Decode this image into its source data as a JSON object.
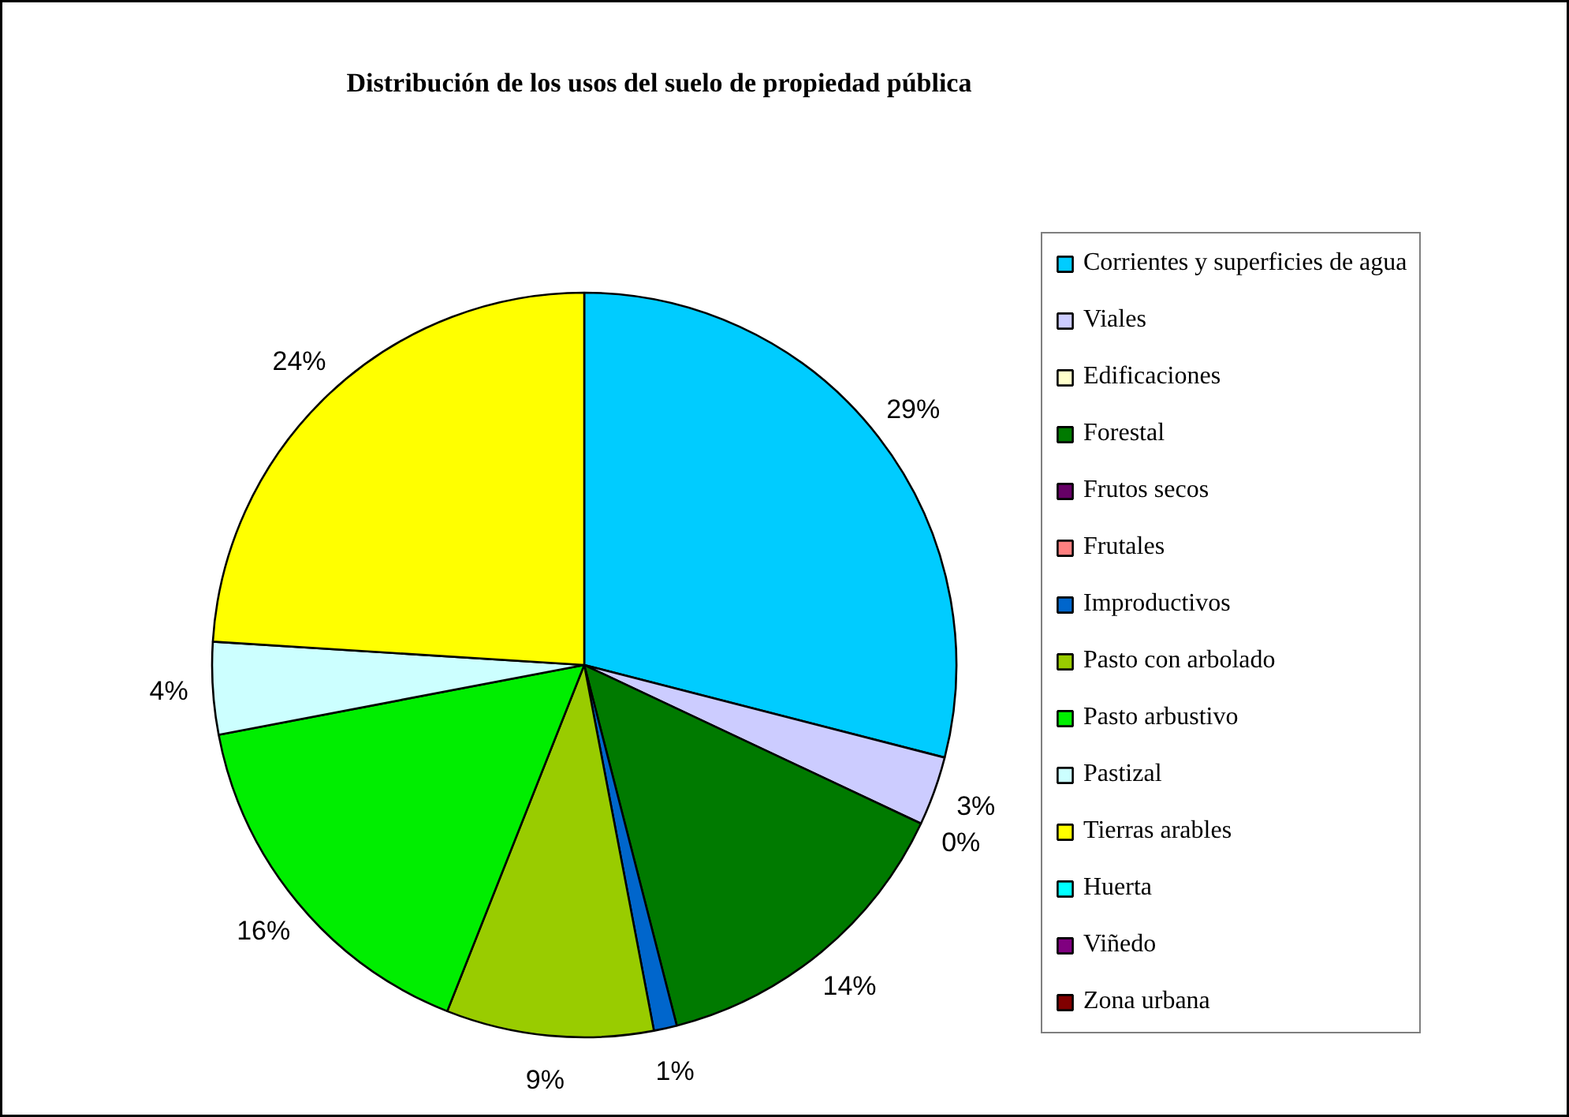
{
  "chart_data": {
    "type": "pie",
    "title": "Distribución de los usos del suelo de propiedad pública",
    "categories": [
      "Corrientes y superficies de agua",
      "Viales",
      "Edificaciones",
      "Forestal",
      "Frutos secos",
      "Frutales",
      "Improductivos",
      "Pasto con arbolado",
      "Pasto arbustivo",
      "Pastizal",
      "Tierras arables",
      "Huerta",
      "Viñedo",
      "Zona urbana"
    ],
    "values": [
      29,
      3,
      0,
      14,
      0,
      0,
      1,
      9,
      16,
      4,
      24,
      0,
      0,
      0
    ],
    "value_labels": [
      "29%",
      "3%",
      "0%",
      "14%",
      null,
      null,
      "1%",
      "9%",
      "16%",
      "4%",
      "24%",
      null,
      null,
      null
    ],
    "colors": [
      "#00ccff",
      "#ccccff",
      "#ffffcc",
      "#007a00",
      "#660066",
      "#ff8080",
      "#0066cc",
      "#99cc00",
      "#00ee00",
      "#ccffff",
      "#ffff00",
      "#00ffff",
      "#800080",
      "#800000"
    ],
    "legend": "right"
  }
}
